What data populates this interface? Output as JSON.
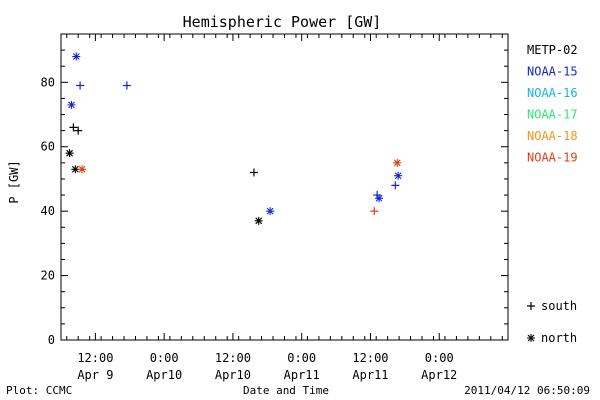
{
  "chart_data": {
    "type": "scatter",
    "title": "Hemispheric Power [GW]",
    "ylabel": "P [GW]",
    "xlabel": "Date and Time",
    "ylim": [
      0,
      95
    ],
    "xlim": [
      "2011-04-09 06:00",
      "2011-04-12 12:00"
    ],
    "yticks": [
      0,
      20,
      40,
      60,
      80
    ],
    "xticks": [
      {
        "top": "12:00",
        "bottom": "Apr 9",
        "x": "2011-04-09 12:00"
      },
      {
        "top": "0:00",
        "bottom": "Apr10",
        "x": "2011-04-10 00:00"
      },
      {
        "top": "12:00",
        "bottom": "Apr10",
        "x": "2011-04-10 12:00"
      },
      {
        "top": "0:00",
        "bottom": "Apr11",
        "x": "2011-04-11 00:00"
      },
      {
        "top": "12:00",
        "bottom": "Apr11",
        "x": "2011-04-11 12:00"
      },
      {
        "top": "0:00",
        "bottom": "Apr12",
        "x": "2011-04-12 00:00"
      }
    ],
    "grid": false,
    "legend_position": "right",
    "series": [
      {
        "name": "METP-02",
        "color": "#000000"
      },
      {
        "name": "NOAA-15",
        "color": "#1428d2"
      },
      {
        "name": "NOAA-16",
        "color": "#14b4e6"
      },
      {
        "name": "NOAA-17",
        "color": "#32e678"
      },
      {
        "name": "NOAA-18",
        "color": "#f0961e"
      },
      {
        "name": "NOAA-19",
        "color": "#e63c14"
      }
    ],
    "markers": {
      "south": "+",
      "north": "*"
    },
    "marker_legend": [
      {
        "symbol": "+",
        "label": "south"
      },
      {
        "symbol": "*",
        "label": "north"
      }
    ],
    "notable_points": [
      {
        "series": "NOAA-15",
        "x": "2011-04-09 08:40",
        "y": 88,
        "hemisphere": "north"
      },
      {
        "series": "NOAA-15",
        "x": "2011-04-09 09:20",
        "y": 79,
        "hemisphere": "south"
      },
      {
        "series": "NOAA-15",
        "x": "2011-04-09 17:30",
        "y": 79,
        "hemisphere": "south"
      },
      {
        "series": "NOAA-15",
        "x": "2011-04-09 07:50",
        "y": 73,
        "hemisphere": "north"
      },
      {
        "series": "METP-02",
        "x": "2011-04-09 08:10",
        "y": 66,
        "hemisphere": "south"
      },
      {
        "series": "METP-02",
        "x": "2011-04-09 09:00",
        "y": 65,
        "hemisphere": "south"
      },
      {
        "series": "METP-02",
        "x": "2011-04-09 07:30",
        "y": 58,
        "hemisphere": "north"
      },
      {
        "series": "METP-02",
        "x": "2011-04-09 08:30",
        "y": 53,
        "hemisphere": "north"
      },
      {
        "series": "NOAA-19",
        "x": "2011-04-09 09:40",
        "y": 53,
        "hemisphere": "north"
      },
      {
        "series": "METP-02",
        "x": "2011-04-10 15:40",
        "y": 52,
        "hemisphere": "south"
      },
      {
        "series": "NOAA-19",
        "x": "2011-04-11 16:40",
        "y": 55,
        "hemisphere": "north"
      },
      {
        "series": "NOAA-15",
        "x": "2011-04-11 16:50",
        "y": 51,
        "hemisphere": "north"
      },
      {
        "series": "NOAA-15",
        "x": "2011-04-11 16:20",
        "y": 48,
        "hemisphere": "south"
      },
      {
        "series": "NOAA-15",
        "x": "2011-04-11 13:10",
        "y": 45,
        "hemisphere": "south"
      },
      {
        "series": "NOAA-15",
        "x": "2011-04-11 13:30",
        "y": 44,
        "hemisphere": "north"
      },
      {
        "series": "NOAA-19",
        "x": "2011-04-11 12:40",
        "y": 40,
        "hemisphere": "south"
      },
      {
        "series": "NOAA-15",
        "x": "2011-04-10 18:30",
        "y": 40,
        "hemisphere": "north"
      },
      {
        "series": "METP-02",
        "x": "2011-04-10 16:30",
        "y": 37,
        "hemisphere": "north"
      }
    ]
  },
  "footer": {
    "left": "Plot: CCMC",
    "center": "Date and Time",
    "right": "2011/04/12 06:50:09"
  }
}
